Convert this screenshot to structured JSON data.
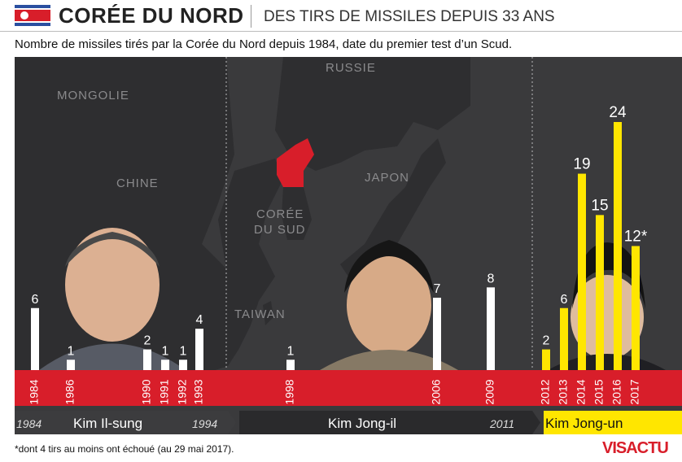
{
  "header": {
    "title": "CORÉE DU NORD",
    "subtitle": "DES TIRS DE MISSILES DEPUIS 33 ANS"
  },
  "description": "Nombre de missiles tirés par la Corée du Nord depuis 1984, date du premier test d’un Scud.",
  "map_labels": {
    "mongolie": "MONGOLIE",
    "chine": "CHINE",
    "russie": "RUSSIE",
    "japon": "JAPON",
    "coree_du_sud_1": "CORÉE",
    "coree_du_sud_2": "DU SUD",
    "taiwan": "TAIWAN"
  },
  "eras": [
    {
      "leader": "Kim Il-sung",
      "start": "1984",
      "end": "1994"
    },
    {
      "leader": "Kim Jong-il",
      "start": "",
      "end": "2011"
    },
    {
      "leader": "Kim Jong-un",
      "start": "",
      "end": ""
    }
  ],
  "footnote": "*dont 4 tirs au moins ont échoué (au 29 mai 2017).",
  "logo": {
    "part1": "VISACTU",
    "part2": ""
  },
  "colors": {
    "accent_red": "#d81e2a",
    "bar_white": "#ffffff",
    "bar_yellow": "#ffe600",
    "background": "#3a3a3c"
  },
  "chart_data": {
    "type": "bar",
    "title": "",
    "categories": [
      "1984",
      "1986",
      "1990",
      "1991",
      "1992",
      "1993",
      "1998",
      "2006",
      "2009",
      "2012",
      "2013",
      "2014",
      "2015",
      "2016",
      "2017"
    ],
    "values": [
      6,
      1,
      2,
      1,
      1,
      4,
      1,
      7,
      8,
      2,
      6,
      19,
      15,
      24,
      12
    ],
    "value_labels": [
      "6",
      "1",
      "2",
      "1",
      "1",
      "4",
      "1",
      "7",
      "8",
      "2",
      "6",
      "19",
      "15",
      "24",
      "12*"
    ],
    "eras": [
      "Kim Il-sung",
      "Kim Il-sung",
      "Kim Il-sung",
      "Kim Il-sung",
      "Kim Il-sung",
      "Kim Il-sung",
      "Kim Jong-il",
      "Kim Jong-il",
      "Kim Jong-il",
      "Kim Jong-un",
      "Kim Jong-un",
      "Kim Jong-un",
      "Kim Jong-un",
      "Kim Jong-un",
      "Kim Jong-un"
    ],
    "ylim": [
      0,
      24
    ],
    "xlabel": "",
    "ylabel": ""
  }
}
